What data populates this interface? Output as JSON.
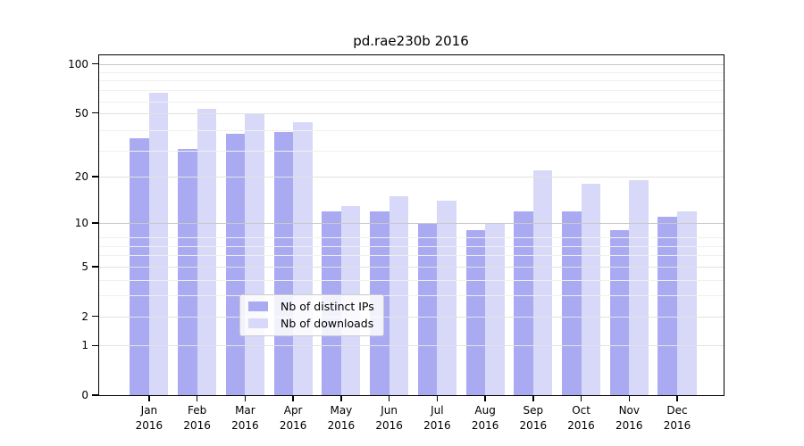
{
  "title": "pd.rae230b 2016",
  "chart_data": {
    "type": "bar",
    "title": "pd.rae230b 2016",
    "categories": [
      "Jan",
      "Feb",
      "Mar",
      "Apr",
      "May",
      "Jun",
      "Jul",
      "Aug",
      "Sep",
      "Oct",
      "Nov",
      "Dec"
    ],
    "x_axis_year": "2016",
    "series": [
      {
        "name": "Nb of distinct IPs",
        "color": "#aaaaf2",
        "values": [
          35,
          30,
          37,
          38,
          12,
          12,
          10,
          9,
          12,
          12,
          9,
          11
        ]
      },
      {
        "name": "Nb of downloads",
        "color": "#d8d8f8",
        "values": [
          67,
          53,
          50,
          44,
          13,
          15,
          14,
          10,
          22,
          18,
          19,
          12
        ]
      }
    ],
    "y_axis": {
      "scale": "log1p",
      "ticks": [
        0,
        1,
        2,
        5,
        10,
        20,
        50,
        100
      ],
      "top_value": 113,
      "minor_gridlines": [
        3,
        4,
        6,
        7,
        8,
        29,
        39,
        59,
        69,
        79,
        89
      ],
      "decade_gridlines": [
        10,
        100
      ]
    },
    "grid": true,
    "legend_position": "bottom-center",
    "background_color": "#ffffff",
    "text_color": "#000000"
  }
}
